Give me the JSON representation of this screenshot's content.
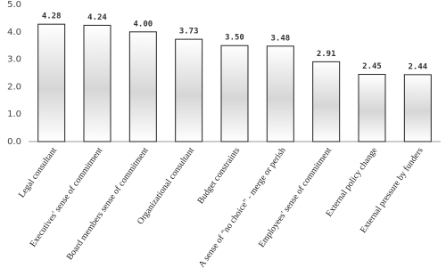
{
  "chart_data": {
    "type": "bar",
    "categories": [
      "Legal consultant",
      "Executives' sense of commitment",
      "Board members sense of commitment",
      "Organizational consultant",
      "Budget constraints",
      "A sense of \"no choice\" - merge or perish",
      "Employees' sense of commitment",
      "External policy change",
      "External pressure by funders"
    ],
    "values": [
      4.28,
      4.24,
      4.0,
      3.73,
      3.5,
      3.48,
      2.91,
      2.45,
      2.44
    ],
    "value_labels": [
      "4.28",
      "4.24",
      "4.00",
      "3.73",
      "3.50",
      "3.48",
      "2.91",
      "2.45",
      "2.44"
    ],
    "color": "#bdbdbd",
    "ylim": [
      0,
      5
    ],
    "yticks": [
      {
        "value": 0,
        "label": "0.0"
      },
      {
        "value": 1,
        "label": "1.0"
      },
      {
        "value": 2,
        "label": "2.0"
      },
      {
        "value": 3,
        "label": "3.0"
      },
      {
        "value": 4,
        "label": "4.0"
      },
      {
        "value": 5,
        "label": "5.0"
      }
    ],
    "grid": false
  }
}
